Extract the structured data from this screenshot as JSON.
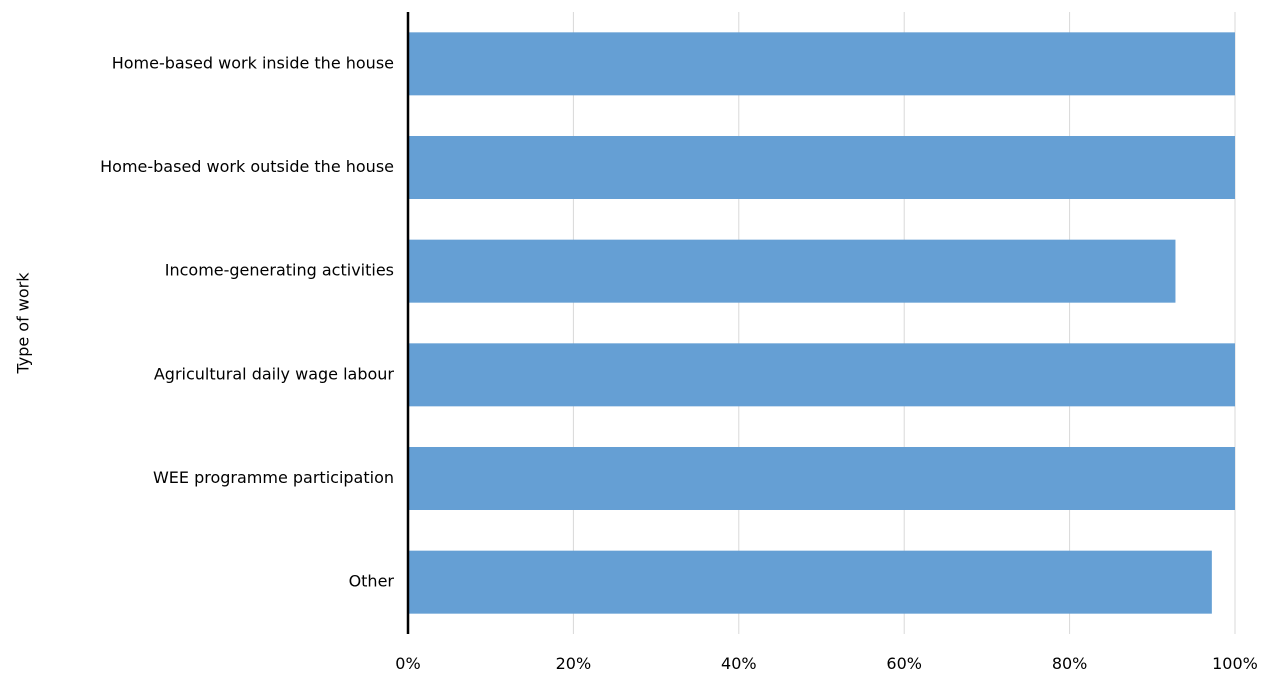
{
  "chart_data": {
    "type": "bar",
    "orientation": "horizontal",
    "categories": [
      "Home-based work inside the house",
      "Home-based work outside the house",
      "Income-generating activities",
      "Agricultural daily wage labour",
      "WEE programme participation",
      "Other"
    ],
    "values": [
      100,
      100,
      92.8,
      100,
      100,
      97.2
    ],
    "ylabel": "Type of work",
    "xlim": [
      0,
      100
    ],
    "x_ticks": [
      "0%",
      "20%",
      "40%",
      "60%",
      "80%",
      "100%"
    ],
    "grid": "vertical",
    "legend": "none",
    "colors": {
      "bar": "#659fd4",
      "grid": "#d9d9d9",
      "axis": "#000000"
    }
  }
}
